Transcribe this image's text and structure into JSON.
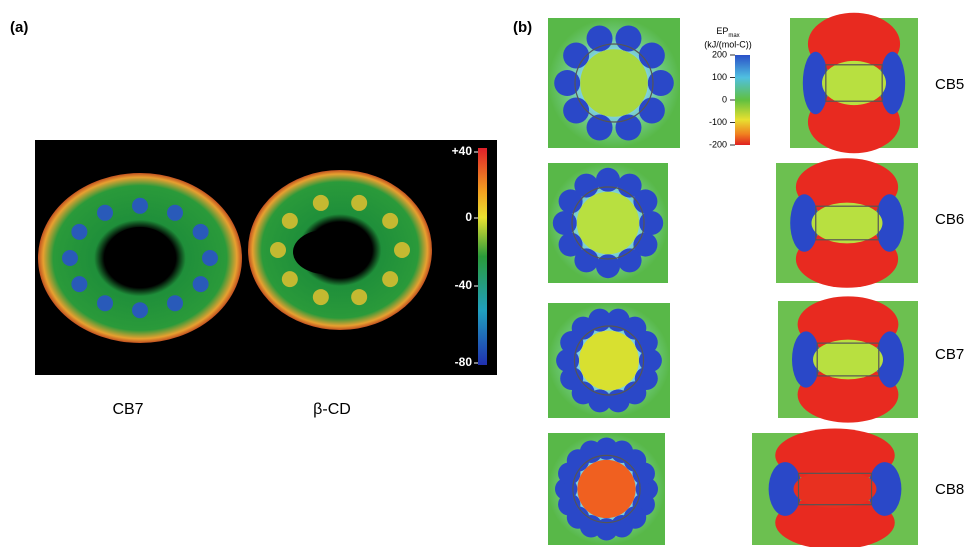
{
  "panel_a": {
    "label": "(a)",
    "colorbar_ticks": [
      "+40",
      "0",
      "-40",
      "-80"
    ],
    "captions": [
      "CB7",
      "β-CD"
    ]
  },
  "panel_b": {
    "label": "(b)",
    "colorbar": {
      "title": "EP",
      "title_sub": "max",
      "unit": "(kJ/(mol-C))",
      "ticks": [
        "200",
        "100",
        "0",
        "-100",
        "-200"
      ]
    },
    "rows": [
      "CB5",
      "CB6",
      "CB7",
      "CB8"
    ]
  }
}
